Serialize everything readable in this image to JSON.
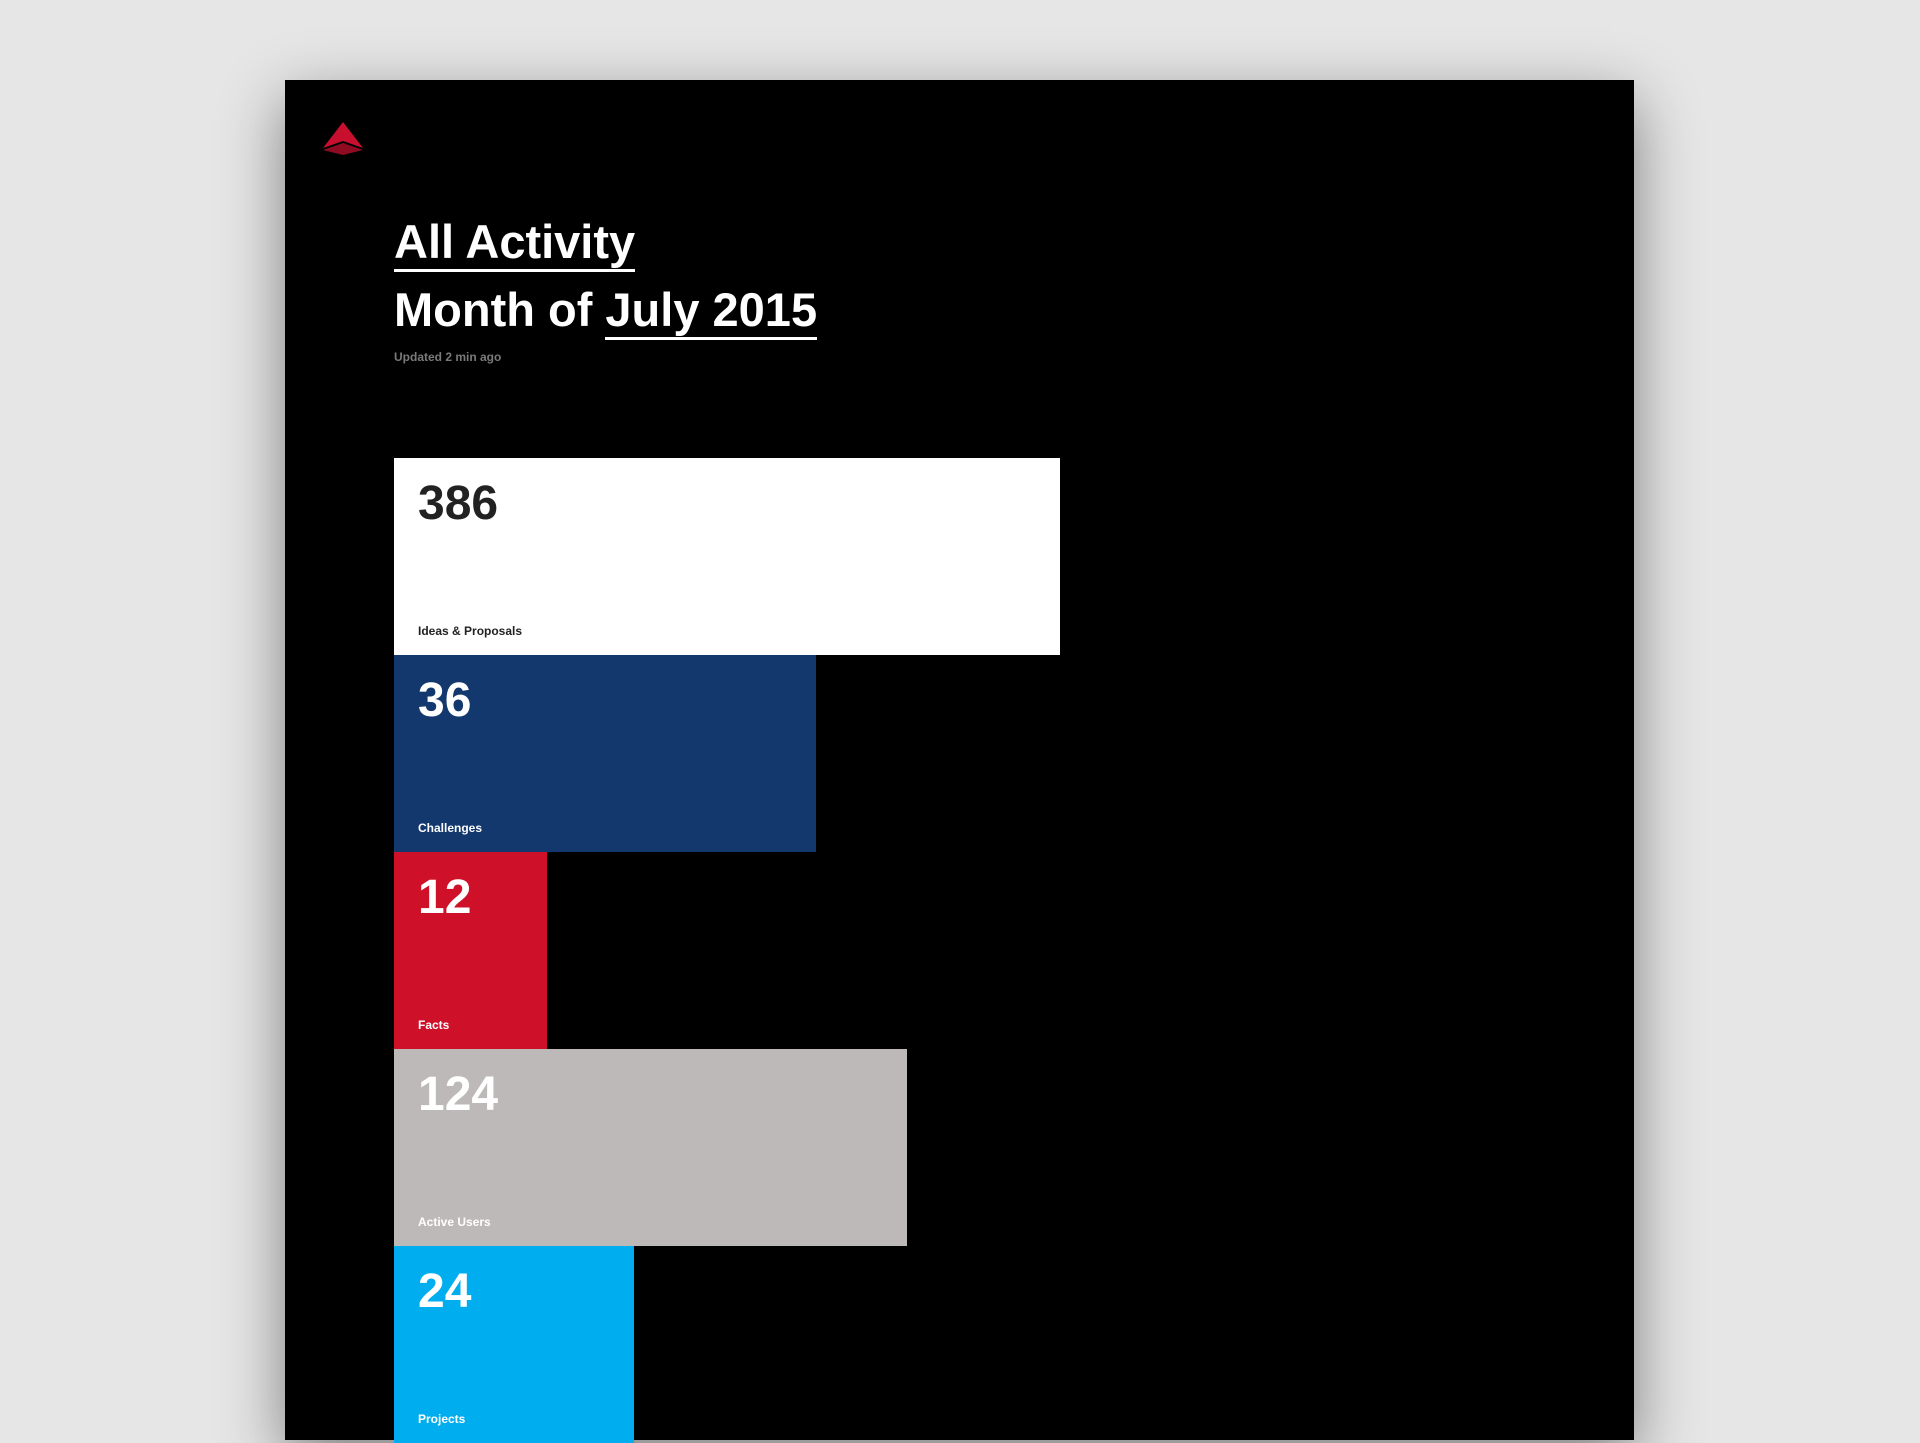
{
  "header": {
    "title": "All Activity",
    "period_prefix": "Month of",
    "period": "July 2015",
    "updated": "Updated 2 min ago"
  },
  "items": [
    {
      "value": 386,
      "label": "Ideas & Proposals"
    },
    {
      "value": 36,
      "label": "Challenges"
    },
    {
      "value": 12,
      "label": "Facts"
    },
    {
      "value": 124,
      "label": "Active Users"
    },
    {
      "value": 24,
      "label": "Projects"
    }
  ]
}
